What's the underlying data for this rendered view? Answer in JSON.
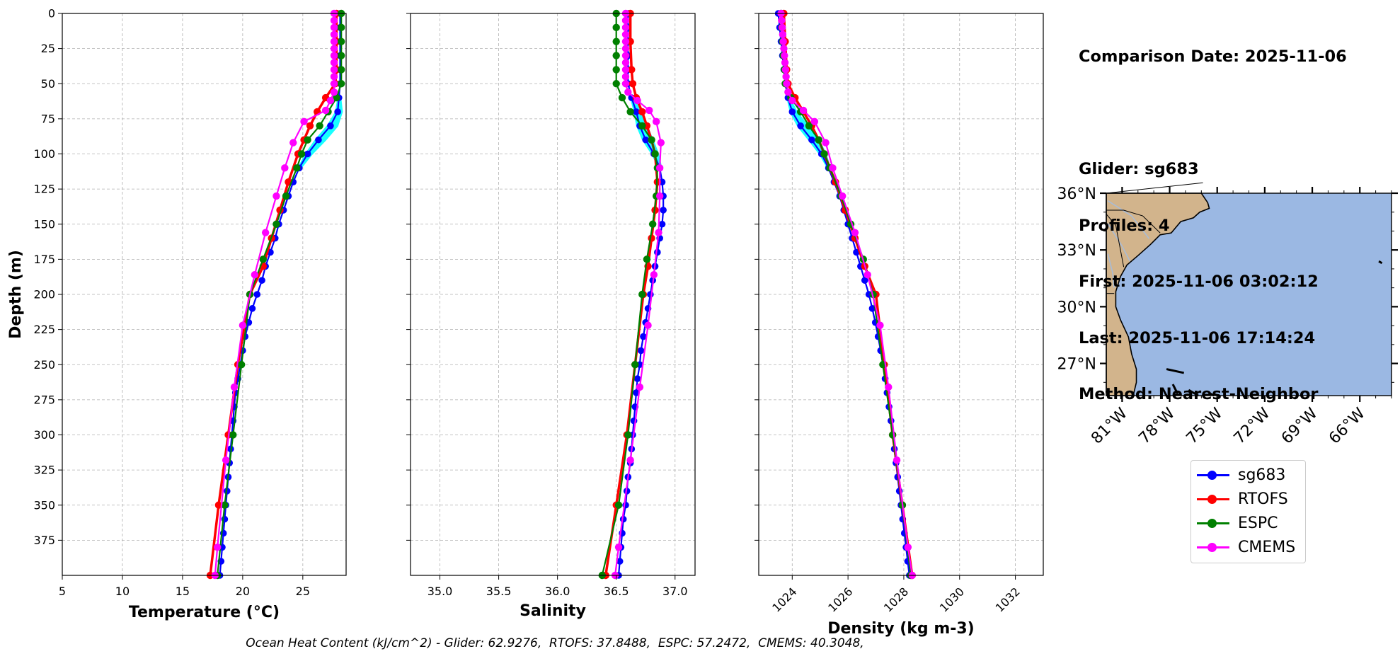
{
  "info_panel": {
    "comparison_date": "Comparison Date: 2025-11-06",
    "glider": "Glider: sg683",
    "profiles": "Profiles: 4",
    "first": "First: 2025-11-06 03:02:12",
    "last": "Last: 2025-11-06 17:14:24",
    "method": "Method: Nearest-Neighbor"
  },
  "ohc_text": "Ocean Heat Content (kJ/cm^2) - Glider: 62.9276,  RTOFS: 37.8488,  ESPC: 57.2472,  CMEMS: 40.3048,",
  "legend": [
    {
      "label": "sg683",
      "color": "#0000ff"
    },
    {
      "label": "RTOFS",
      "color": "#ff0000"
    },
    {
      "label": "ESPC",
      "color": "#008000"
    },
    {
      "label": "CMEMS",
      "color": "#ff00ff"
    }
  ],
  "colors": {
    "glider_spread": "#00ffff",
    "land": "#d2b48c",
    "ocean": "#9bb8e3",
    "grid": "#b0b0b0"
  },
  "map": {
    "lat_labels": [
      "36°N",
      "33°N",
      "30°N",
      "27°N"
    ],
    "lat_values": [
      36,
      33,
      30,
      27
    ],
    "lon_labels": [
      "81°W",
      "78°W",
      "75°W",
      "72°W",
      "69°W",
      "66°W"
    ],
    "lon_values": [
      -81,
      -78,
      -75,
      -72,
      -69,
      -66
    ],
    "extent": {
      "lon": [
        -82.0,
        -64.0
      ],
      "lat": [
        25.3,
        36.0
      ]
    }
  },
  "chart_data": [
    {
      "type": "line",
      "xlabel": "Temperature (°C)",
      "ylabel": "Depth (m)",
      "xlim": [
        5,
        28.6
      ],
      "ylim": [
        400,
        0
      ],
      "xticks": [
        5,
        10,
        15,
        20,
        25
      ],
      "yticks": [
        0,
        25,
        50,
        75,
        100,
        125,
        150,
        175,
        200,
        225,
        250,
        275,
        300,
        325,
        350,
        375
      ],
      "grid": true,
      "series": [
        {
          "name": "sg683",
          "depth": [
            0,
            10,
            20,
            30,
            40,
            50,
            60,
            70,
            80,
            90,
            100,
            110,
            120,
            130,
            140,
            150,
            160,
            170,
            180,
            190,
            200,
            210,
            220,
            230,
            240,
            250,
            260,
            270,
            280,
            290,
            300,
            310,
            320,
            330,
            340,
            350,
            360,
            370,
            380,
            390,
            400
          ],
          "values": [
            28.1,
            28.1,
            28.1,
            28.1,
            28.1,
            28.1,
            28.0,
            27.9,
            27.3,
            26.3,
            25.4,
            24.7,
            24.2,
            23.8,
            23.4,
            23.0,
            22.7,
            22.3,
            21.9,
            21.6,
            21.2,
            20.8,
            20.5,
            20.2,
            20.0,
            19.8,
            19.6,
            19.4,
            19.3,
            19.2,
            19.1,
            19.0,
            18.9,
            18.8,
            18.7,
            18.6,
            18.5,
            18.4,
            18.3,
            18.2,
            18.1
          ]
        },
        {
          "name": "RTOFS",
          "depth": [
            0,
            20,
            40,
            50,
            60,
            70,
            80,
            90,
            100,
            120,
            140,
            160,
            180,
            200,
            250,
            300,
            350,
            400
          ],
          "values": [
            27.8,
            27.8,
            27.8,
            27.7,
            26.9,
            26.2,
            25.6,
            25.1,
            24.6,
            23.8,
            23.1,
            22.4,
            21.7,
            20.6,
            19.6,
            18.8,
            18.0,
            17.3
          ]
        },
        {
          "name": "ESPC",
          "depth": [
            0,
            10,
            20,
            30,
            40,
            50,
            60,
            70,
            80,
            90,
            100,
            110,
            130,
            150,
            175,
            200,
            250,
            300,
            350,
            400
          ],
          "values": [
            28.2,
            28.2,
            28.2,
            28.2,
            28.2,
            28.2,
            27.8,
            27.1,
            26.4,
            25.4,
            24.9,
            24.5,
            23.6,
            22.8,
            21.7,
            20.6,
            19.9,
            19.2,
            18.5,
            17.9
          ]
        },
        {
          "name": "CMEMS",
          "depth": [
            0,
            5,
            10,
            15,
            20,
            25,
            30,
            35,
            40,
            45,
            50,
            56,
            62,
            69,
            77,
            92,
            110,
            130,
            156,
            186,
            222,
            266,
            318,
            380,
            400
          ],
          "values": [
            27.6,
            27.6,
            27.6,
            27.6,
            27.6,
            27.6,
            27.6,
            27.6,
            27.6,
            27.6,
            27.6,
            27.6,
            27.3,
            26.9,
            25.1,
            24.2,
            23.5,
            22.8,
            21.9,
            21.0,
            20.0,
            19.3,
            18.6,
            17.9,
            17.7
          ]
        }
      ]
    },
    {
      "type": "line",
      "xlabel": "Salinity",
      "xlim": [
        34.75,
        37.17
      ],
      "ylim": [
        400,
        0
      ],
      "xticks": [
        35.0,
        35.5,
        36.0,
        36.5,
        37.0
      ],
      "grid": true,
      "series": [
        {
          "name": "sg683",
          "depth": [
            0,
            10,
            20,
            30,
            40,
            50,
            60,
            70,
            80,
            90,
            100,
            110,
            120,
            130,
            140,
            150,
            160,
            170,
            180,
            190,
            200,
            210,
            220,
            230,
            240,
            250,
            260,
            270,
            280,
            290,
            300,
            310,
            320,
            330,
            340,
            350,
            360,
            370,
            380,
            390,
            400
          ],
          "values": [
            36.6,
            36.6,
            36.6,
            36.6,
            36.6,
            36.6,
            36.63,
            36.67,
            36.7,
            36.75,
            36.82,
            36.87,
            36.89,
            36.9,
            36.9,
            36.89,
            36.87,
            36.85,
            36.83,
            36.81,
            36.79,
            36.77,
            36.75,
            36.73,
            36.71,
            36.7,
            36.68,
            36.67,
            36.66,
            36.65,
            36.64,
            36.63,
            36.62,
            36.6,
            36.59,
            36.58,
            36.56,
            36.55,
            36.54,
            36.53,
            36.52
          ]
        },
        {
          "name": "RTOFS",
          "depth": [
            0,
            20,
            40,
            50,
            60,
            70,
            80,
            90,
            100,
            120,
            140,
            160,
            180,
            200,
            250,
            300,
            350,
            400
          ],
          "values": [
            36.62,
            36.62,
            36.63,
            36.64,
            36.67,
            36.72,
            36.76,
            36.8,
            36.83,
            36.85,
            36.83,
            36.8,
            36.77,
            36.73,
            36.66,
            36.59,
            36.5,
            36.41
          ]
        },
        {
          "name": "ESPC",
          "depth": [
            0,
            10,
            20,
            30,
            40,
            50,
            60,
            70,
            80,
            90,
            100,
            110,
            130,
            150,
            175,
            200,
            250,
            300,
            350,
            400
          ],
          "values": [
            36.5,
            36.5,
            36.5,
            36.5,
            36.5,
            36.5,
            36.55,
            36.62,
            36.72,
            36.8,
            36.83,
            36.85,
            36.84,
            36.81,
            36.76,
            36.72,
            36.66,
            36.6,
            36.52,
            36.38
          ]
        },
        {
          "name": "CMEMS",
          "depth": [
            0,
            5,
            10,
            15,
            20,
            25,
            30,
            35,
            40,
            45,
            50,
            56,
            62,
            69,
            77,
            92,
            110,
            130,
            156,
            186,
            222,
            266,
            318,
            380,
            400
          ],
          "values": [
            36.58,
            36.58,
            36.58,
            36.58,
            36.58,
            36.58,
            36.58,
            36.58,
            36.58,
            36.58,
            36.58,
            36.6,
            36.68,
            36.78,
            36.84,
            36.88,
            36.87,
            36.87,
            36.86,
            36.82,
            36.77,
            36.7,
            36.62,
            36.52,
            36.49
          ]
        }
      ]
    },
    {
      "type": "line",
      "xlabel": "Density (kg m-3)",
      "xlim": [
        1022.8,
        1033.0
      ],
      "ylim": [
        400,
        0
      ],
      "xticks": [
        1024,
        1026,
        1028,
        1030,
        1032
      ],
      "grid": true,
      "series": [
        {
          "name": "sg683",
          "depth": [
            0,
            10,
            20,
            30,
            40,
            50,
            60,
            70,
            80,
            90,
            100,
            110,
            120,
            130,
            140,
            150,
            160,
            170,
            180,
            190,
            200,
            210,
            220,
            230,
            240,
            250,
            260,
            270,
            280,
            290,
            300,
            310,
            320,
            330,
            340,
            350,
            360,
            370,
            380,
            390,
            400
          ],
          "values": [
            1023.5,
            1023.55,
            1023.6,
            1023.65,
            1023.7,
            1023.75,
            1023.85,
            1024.0,
            1024.3,
            1024.7,
            1025.05,
            1025.3,
            1025.5,
            1025.7,
            1025.85,
            1026.0,
            1026.15,
            1026.3,
            1026.45,
            1026.6,
            1026.75,
            1026.87,
            1026.98,
            1027.08,
            1027.17,
            1027.25,
            1027.33,
            1027.4,
            1027.47,
            1027.54,
            1027.6,
            1027.66,
            1027.72,
            1027.78,
            1027.84,
            1027.9,
            1027.96,
            1028.02,
            1028.08,
            1028.14,
            1028.2
          ]
        },
        {
          "name": "RTOFS",
          "depth": [
            0,
            20,
            40,
            50,
            60,
            70,
            80,
            90,
            100,
            120,
            140,
            160,
            180,
            200,
            250,
            300,
            350,
            400
          ],
          "values": [
            1023.7,
            1023.75,
            1023.8,
            1023.85,
            1024.1,
            1024.4,
            1024.7,
            1024.95,
            1025.15,
            1025.55,
            1025.9,
            1026.25,
            1026.6,
            1027.0,
            1027.3,
            1027.6,
            1027.95,
            1028.3
          ]
        },
        {
          "name": "ESPC",
          "depth": [
            0,
            10,
            20,
            30,
            40,
            50,
            60,
            70,
            80,
            90,
            100,
            110,
            130,
            150,
            175,
            200,
            250,
            300,
            350,
            400
          ],
          "values": [
            1023.6,
            1023.62,
            1023.65,
            1023.68,
            1023.72,
            1023.75,
            1023.95,
            1024.3,
            1024.6,
            1024.95,
            1025.15,
            1025.35,
            1025.75,
            1026.1,
            1026.55,
            1026.9,
            1027.25,
            1027.6,
            1027.95,
            1028.25
          ]
        },
        {
          "name": "CMEMS",
          "depth": [
            0,
            5,
            10,
            15,
            20,
            25,
            30,
            35,
            40,
            45,
            50,
            56,
            62,
            69,
            77,
            92,
            110,
            130,
            156,
            186,
            222,
            266,
            318,
            380,
            400
          ],
          "values": [
            1023.6,
            1023.62,
            1023.64,
            1023.66,
            1023.68,
            1023.7,
            1023.72,
            1023.74,
            1023.76,
            1023.78,
            1023.8,
            1023.85,
            1024.0,
            1024.4,
            1024.8,
            1025.2,
            1025.45,
            1025.8,
            1026.25,
            1026.7,
            1027.15,
            1027.45,
            1027.75,
            1028.15,
            1028.3
          ]
        }
      ]
    }
  ]
}
